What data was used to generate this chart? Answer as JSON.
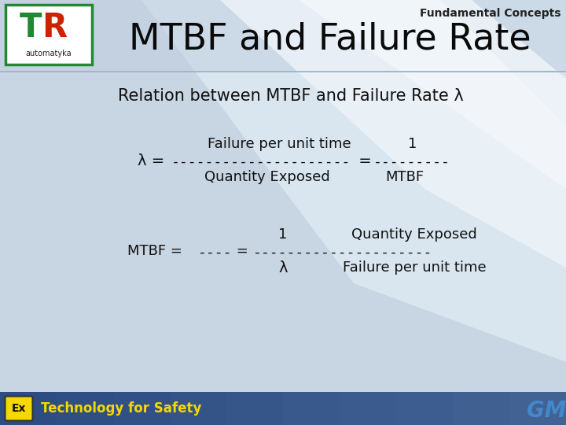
{
  "fundamental_concepts": "Fundamental Concepts",
  "main_title": "MTBF and Failure Rate",
  "subtitle": "Relation between MTBF and Failure Rate λ",
  "line1_num_left": "Failure per unit time",
  "line1_num_right": "1",
  "line1_dashes_left": "---------------------",
  "line1_dashes_right": "---------",
  "line1_lambda": "λ = ",
  "line1_eq": " = ",
  "line1_den_left": "Quantity Exposed",
  "line1_den_right": "MTBF",
  "line2_num_left": "1",
  "line2_num_right": "Quantity Exposed",
  "line2_mtbf": "MTBF = ",
  "line2_dashes_left": "----",
  "line2_dashes_right": "---------------------",
  "line2_eq": " = ",
  "line2_den_left": "λ",
  "line2_den_right": "Failure per unit time",
  "footer_text": "Technology for Safety",
  "bg_main": "#c8d5e2",
  "bg_white_sweep": "#e8eef5",
  "header_stripe": "#b8c8d8",
  "footer_bg_left": "#2a4a80",
  "footer_bg_right": "#6080b0",
  "footer_yellow": "#f5d800",
  "text_color": "#111111",
  "logo_green": "#228833",
  "logo_red": "#cc2200",
  "logo_border": "#228833",
  "gm_color": "#4488cc"
}
